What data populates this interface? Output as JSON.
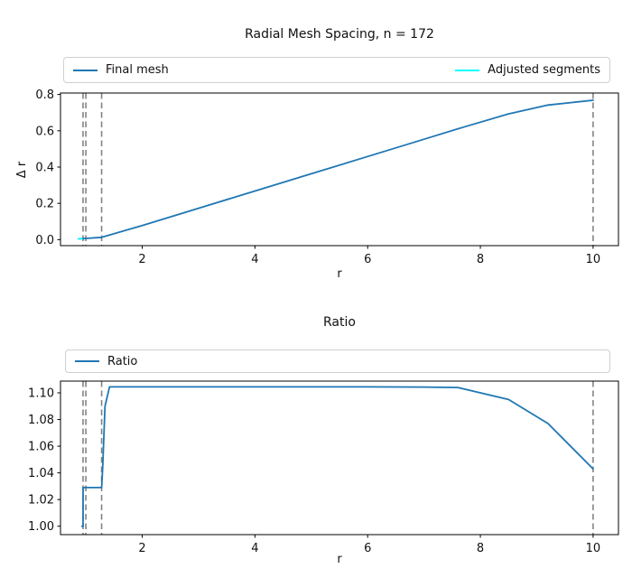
{
  "figure": {
    "background": "#ffffff",
    "line_blue": "#1f77b4",
    "line_cyan": "#00ffff",
    "vline_gray": "#848484"
  },
  "chart_data": [
    {
      "type": "line",
      "title": "Radial Mesh Spacing, n = 172",
      "xlabel": "r",
      "ylabel": "Δ r",
      "xlim": [
        0.55,
        10.45
      ],
      "ylim": [
        -0.033,
        0.808
      ],
      "xticks": [
        2,
        4,
        6,
        8,
        10
      ],
      "xtick_labels": [
        "2",
        "4",
        "6",
        "8",
        "10"
      ],
      "yticks": [
        0.0,
        0.2,
        0.4,
        0.6,
        0.8
      ],
      "ytick_labels": [
        "0.0",
        "0.2",
        "0.4",
        "0.6",
        "0.8"
      ],
      "grid": false,
      "legend_position": "above-axes-expanded",
      "vlines": {
        "x": [
          0.95,
          1.0,
          1.28,
          10.0
        ],
        "color": "#848484",
        "style": "dashed"
      },
      "series": [
        {
          "name": "Final mesh",
          "color": "#1f77b4",
          "x": [
            0.87,
            1.0,
            1.28,
            2,
            3,
            4,
            5,
            6,
            7,
            7.7,
            8.5,
            9.2,
            10
          ],
          "y": [
            0.005,
            0.007,
            0.013,
            0.078,
            0.173,
            0.268,
            0.363,
            0.458,
            0.553,
            0.62,
            0.693,
            0.742,
            0.768
          ]
        },
        {
          "name": "Adjusted segments",
          "color": "#00ffff",
          "x": [
            0.87,
            0.93
          ],
          "y": [
            0.005,
            0.0055
          ]
        }
      ]
    },
    {
      "type": "line",
      "title": "Ratio",
      "xlabel": "r",
      "xlim": [
        0.55,
        10.45
      ],
      "ylim": [
        0.9937,
        1.1088
      ],
      "xticks": [
        2,
        4,
        6,
        8,
        10
      ],
      "xtick_labels": [
        "2",
        "4",
        "6",
        "8",
        "10"
      ],
      "yticks": [
        1.0,
        1.02,
        1.04,
        1.06,
        1.08,
        1.1
      ],
      "ytick_labels": [
        "1.00",
        "1.02",
        "1.04",
        "1.06",
        "1.08",
        "1.10"
      ],
      "grid": false,
      "legend_position": "above-axes-expanded",
      "vlines": {
        "x": [
          0.95,
          1.0,
          1.28,
          10.0
        ],
        "color": "#848484",
        "style": "dashed"
      },
      "series": [
        {
          "name": "Ratio",
          "color": "#1f77b4",
          "x": [
            0.93,
            0.95,
            0.95,
            1.28,
            1.3,
            1.34,
            1.42,
            2,
            3,
            4,
            5,
            6,
            7,
            7.6,
            8.5,
            9.2,
            10
          ],
          "y": [
            1.0,
            1.0,
            1.029,
            1.029,
            1.045,
            1.09,
            1.1045,
            1.1045,
            1.1045,
            1.1045,
            1.1045,
            1.1045,
            1.1043,
            1.104,
            1.095,
            1.077,
            1.043
          ]
        }
      ]
    }
  ]
}
